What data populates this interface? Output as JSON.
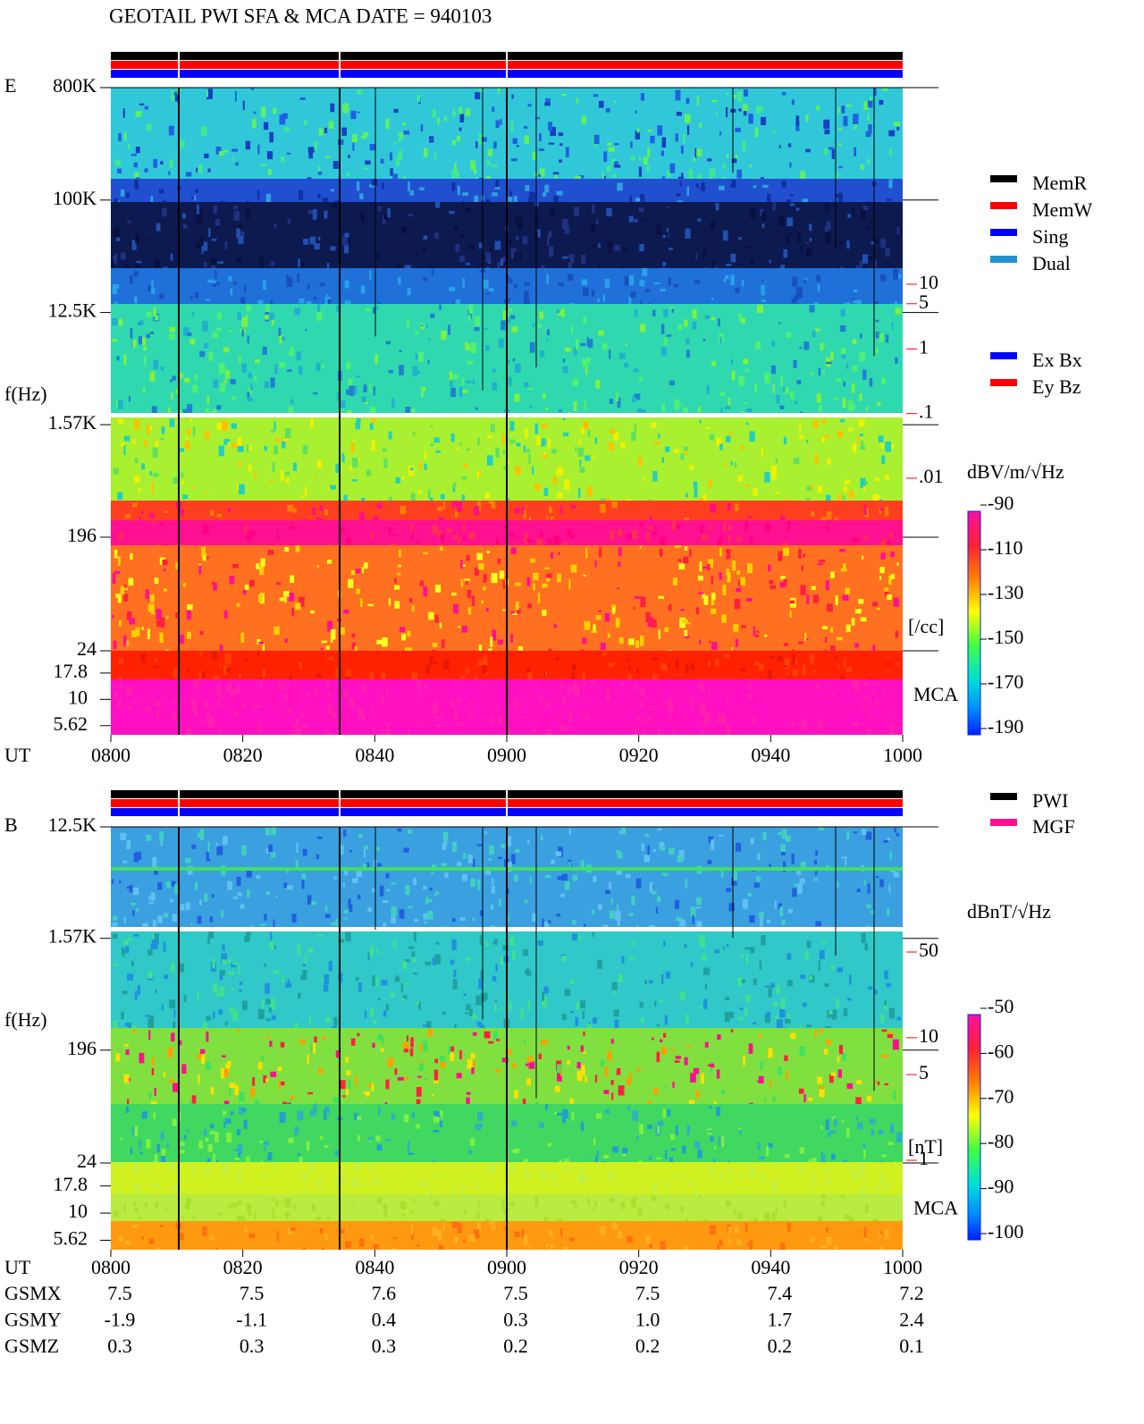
{
  "title": "GEOTAIL  PWI SFA & MCA   DATE = 940103",
  "chart_data": [
    {
      "type": "spectrogram",
      "panel_label": "E",
      "y_label": "f(Hz)",
      "x_label": "UT",
      "log_y": true,
      "ylim": [
        24,
        800000
      ],
      "yticks": [
        {
          "value": 800000,
          "label": "800K"
        },
        {
          "value": 100000,
          "label": "100K"
        },
        {
          "value": 12500,
          "label": "12.5K"
        },
        {
          "value": 1570,
          "label": "1.57K"
        },
        196,
        24
      ],
      "mca_label": "MCA",
      "mca_ylim": [
        4.6,
        29
      ],
      "mca_yticks": [
        17.8,
        10,
        5.62
      ],
      "xlim": [
        480,
        600
      ],
      "xticks": [
        {
          "value": 480,
          "label": "0800"
        },
        {
          "value": 500,
          "label": "0820"
        },
        {
          "value": 520,
          "label": "0840"
        },
        {
          "value": 540,
          "label": "0900"
        },
        {
          "value": 560,
          "label": "0920"
        },
        {
          "value": 580,
          "label": "0940"
        },
        {
          "value": 600,
          "label": "1000"
        }
      ],
      "scale2_lim": [
        0.01,
        10
      ],
      "scale2_ticks": [
        10,
        5,
        1,
        {
          "value": 0.1,
          "label": ".1"
        },
        {
          "value": 0.01,
          "label": ".01"
        }
      ],
      "scale2_unit": "[/cc]",
      "scale2_color": "#ff0000",
      "colorbar": {
        "label": "dBV/m/√Hz",
        "clim": [
          -190,
          -90
        ],
        "ticks": [
          -90,
          -110,
          -130,
          -150,
          -170,
          -190
        ]
      },
      "legends": [
        [
          {
            "name": "MemR",
            "color": "#000000"
          },
          {
            "name": "MemW",
            "color": "#ff0000"
          },
          {
            "name": "Sing",
            "color": "#0000ff"
          },
          {
            "name": "Dual",
            "color": "#2090d0"
          }
        ],
        [
          {
            "name": "Ex Bx",
            "color": "#0000ff"
          },
          {
            "name": "Ey Bz",
            "color": "#ff0000"
          }
        ]
      ]
    },
    {
      "type": "spectrogram",
      "panel_label": "B",
      "y_label": "f(Hz)",
      "x_label": "UT",
      "log_y": true,
      "ylim": [
        24,
        12500
      ],
      "yticks": [
        {
          "value": 12500,
          "label": "12.5K"
        },
        {
          "value": 1570,
          "label": "1.57K"
        },
        196,
        24
      ],
      "mca_label": "MCA",
      "mca_ylim": [
        4.6,
        29
      ],
      "mca_yticks": [
        17.8,
        10,
        5.62
      ],
      "xlim": [
        480,
        600
      ],
      "xticks": [
        {
          "value": 480,
          "label": "0800"
        },
        {
          "value": 500,
          "label": "0820"
        },
        {
          "value": 520,
          "label": "0840"
        },
        {
          "value": 540,
          "label": "0900"
        },
        {
          "value": 560,
          "label": "0920"
        },
        {
          "value": 580,
          "label": "0940"
        },
        {
          "value": 600,
          "label": "1000"
        }
      ],
      "scale2_lim": [
        1,
        50
      ],
      "scale2_ticks": [
        50,
        10,
        5,
        1
      ],
      "scale2_unit": "[nT]",
      "scale2_color": "#ff0000",
      "colorbar": {
        "label": "dBnT/√Hz",
        "clim": [
          -100,
          -50
        ],
        "ticks": [
          -50,
          -60,
          -70,
          -80,
          -90,
          -100
        ]
      },
      "legends": [
        [
          {
            "name": "PWI",
            "color": "#000000"
          },
          {
            "name": "MGF",
            "color": "#ff1090"
          }
        ]
      ]
    }
  ],
  "orbit": {
    "rows": [
      {
        "label": "GSMX",
        "values": [
          "7.5",
          "7.5",
          "7.6",
          "7.5",
          "7.5",
          "7.4",
          "7.2"
        ]
      },
      {
        "label": "GSMY",
        "values": [
          "-1.9",
          "-1.1",
          "0.4",
          "0.3",
          "1.0",
          "1.7",
          "2.4"
        ]
      },
      {
        "label": "GSMZ",
        "values": [
          "0.3",
          "0.3",
          "0.3",
          "0.2",
          "0.2",
          "0.2",
          "0.1"
        ]
      }
    ]
  }
}
